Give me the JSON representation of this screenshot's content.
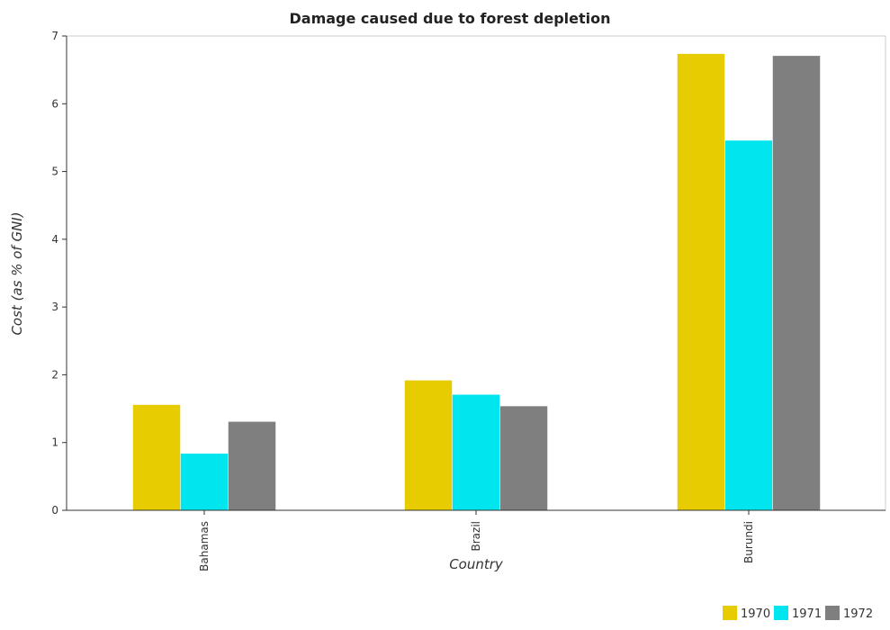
{
  "chart_data": {
    "type": "bar",
    "title": "Damage caused due to forest depletion",
    "xlabel": "Country",
    "ylabel": "Cost (as % of GNI)",
    "categories": [
      "Bahamas",
      "Brazil",
      "Burundi"
    ],
    "ylim": [
      0,
      7
    ],
    "yticks": [
      0,
      1,
      2,
      3,
      4,
      5,
      6,
      7
    ],
    "grid": false,
    "legend_position": "bottom-right",
    "series": [
      {
        "name": "1970",
        "color": "#e6cc00",
        "values": [
          1.56,
          1.92,
          6.74
        ]
      },
      {
        "name": "1971",
        "color": "#00e5ee",
        "values": [
          0.84,
          1.71,
          5.46
        ]
      },
      {
        "name": "1972",
        "color": "#7f7f7f",
        "values": [
          1.31,
          1.54,
          6.71
        ]
      }
    ]
  }
}
